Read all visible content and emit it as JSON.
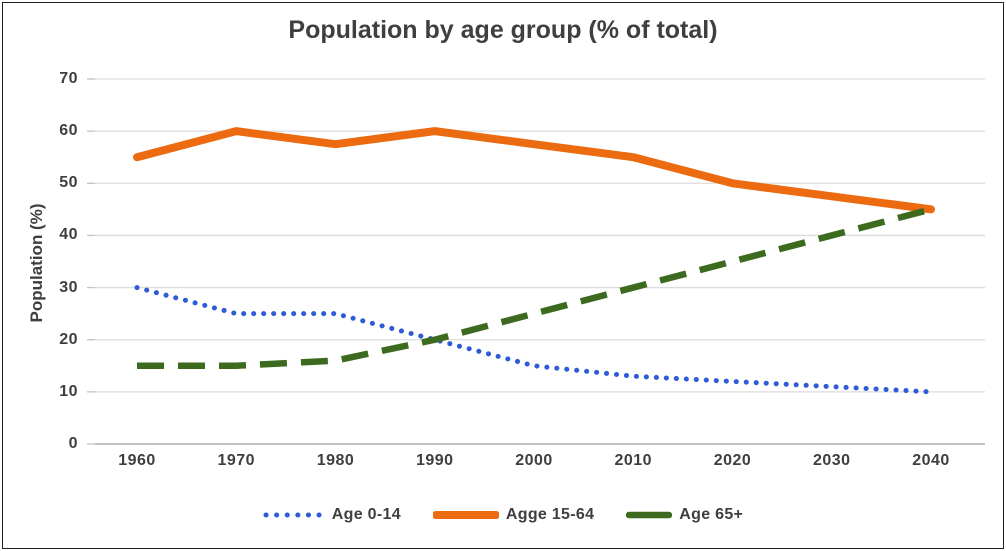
{
  "chart_data": {
    "type": "line",
    "title": "Population by age group (% of total)",
    "ylabel": "Population (%)",
    "xlabel": "",
    "categories": [
      "1960",
      "1970",
      "1980",
      "1990",
      "2000",
      "2010",
      "2020",
      "2030",
      "2040"
    ],
    "yticks": [
      0,
      10,
      20,
      30,
      40,
      50,
      60,
      70
    ],
    "ylim": [
      0,
      70
    ],
    "grid": "horizontal",
    "legend_position": "bottom",
    "series": [
      {
        "name": "Age 0-14",
        "style": "dotted",
        "color": "#2e5cd6",
        "values": [
          30,
          25,
          25,
          20,
          15,
          13,
          12,
          11,
          10
        ]
      },
      {
        "name": "Agge 15-64",
        "style": "solid",
        "color": "#ec6a10",
        "values": [
          55,
          60,
          57.5,
          60,
          57.5,
          55,
          50,
          47.5,
          45
        ]
      },
      {
        "name": "Age 65+",
        "style": "dashed",
        "color": "#3c6b1f",
        "values": [
          15,
          15,
          16,
          20,
          25,
          30,
          35,
          40,
          45
        ]
      }
    ]
  },
  "theme": {
    "text_color": "#3f3f3f",
    "gridline_color": "#dcdcdc",
    "axis_color": "#c3c3c3",
    "border_color": "#1f1f1f",
    "background": "#ffffff"
  }
}
